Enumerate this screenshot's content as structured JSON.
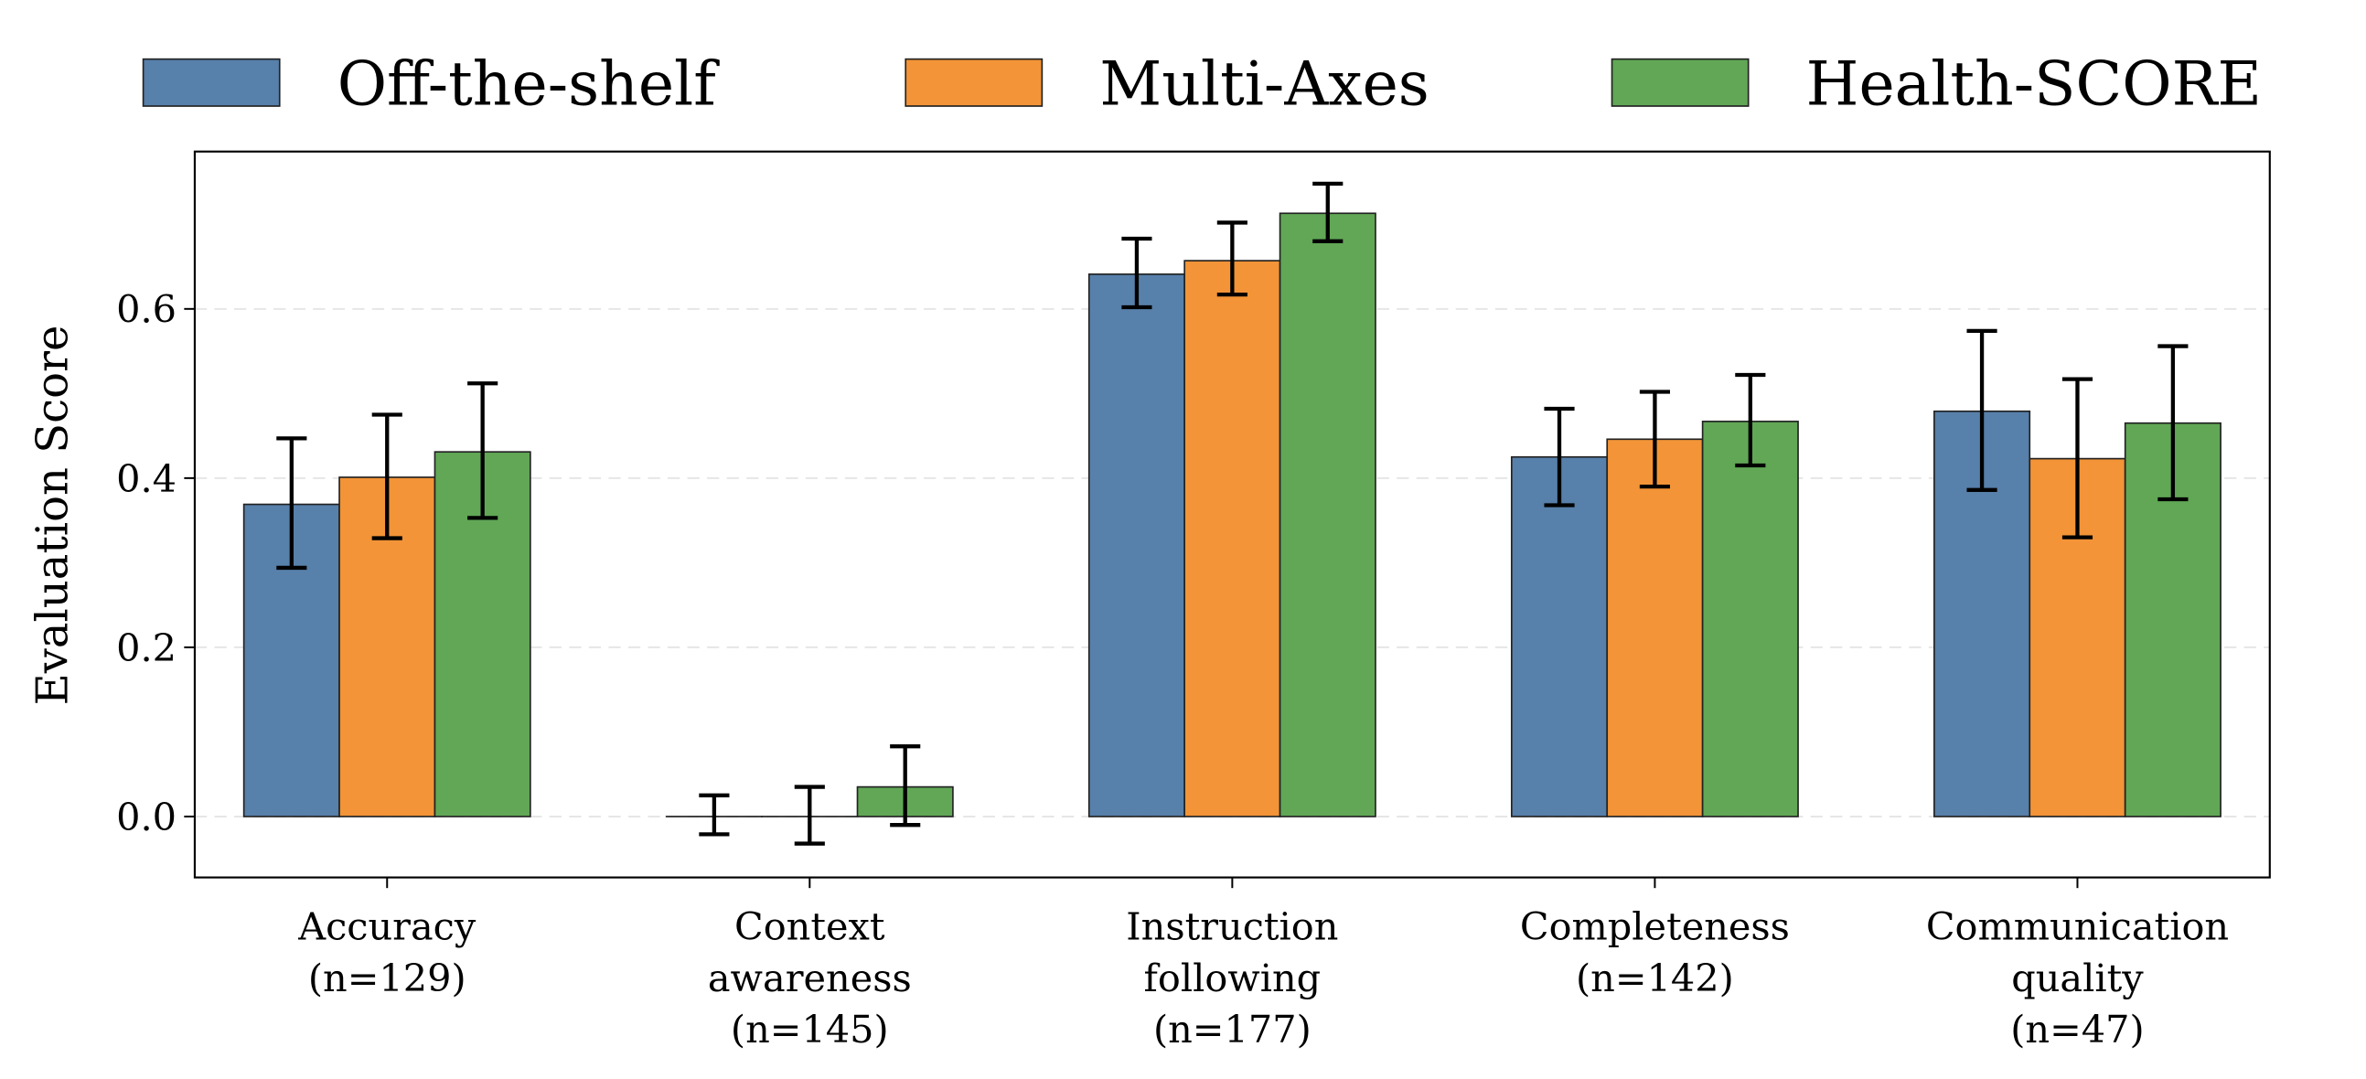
{
  "chart_data": {
    "type": "bar",
    "title": "",
    "xlabel": "",
    "ylabel": "Evaluation Score",
    "ylim": [
      -0.072,
      0.786
    ],
    "yticks": [
      0.0,
      0.2,
      0.4,
      0.6
    ],
    "ytick_labels": [
      "0.0",
      "0.2",
      "0.4",
      "0.6"
    ],
    "grid": "horizontal dashed",
    "legend_position": "top-center, outside",
    "categories": [
      [
        "Accuracy",
        "(n=129)"
      ],
      [
        "Context",
        "awareness",
        "(n=145)"
      ],
      [
        "Instruction",
        "following",
        "(n=177)"
      ],
      [
        "Completeness",
        "(n=142)"
      ],
      [
        "Communication",
        "quality",
        "(n=47)"
      ]
    ],
    "series": [
      {
        "name": "Off-the-shelf",
        "color": "#5780aa",
        "values": [
          0.369,
          0.0,
          0.641,
          0.425,
          0.479
        ],
        "err_low": [
          0.294,
          -0.021,
          0.602,
          0.368,
          0.386
        ],
        "err_high": [
          0.447,
          0.025,
          0.683,
          0.482,
          0.574
        ]
      },
      {
        "name": "Multi-Axes",
        "color": "#f29437",
        "values": [
          0.401,
          0.0,
          0.657,
          0.446,
          0.423
        ],
        "err_low": [
          0.329,
          -0.032,
          0.617,
          0.39,
          0.33
        ],
        "err_high": [
          0.475,
          0.035,
          0.702,
          0.502,
          0.517
        ]
      },
      {
        "name": "Health-SCORE",
        "color": "#61a756",
        "values": [
          0.431,
          0.035,
          0.713,
          0.467,
          0.465
        ],
        "err_low": [
          0.353,
          -0.01,
          0.68,
          0.415,
          0.375
        ],
        "err_high": [
          0.512,
          0.083,
          0.748,
          0.522,
          0.556
        ]
      }
    ]
  }
}
